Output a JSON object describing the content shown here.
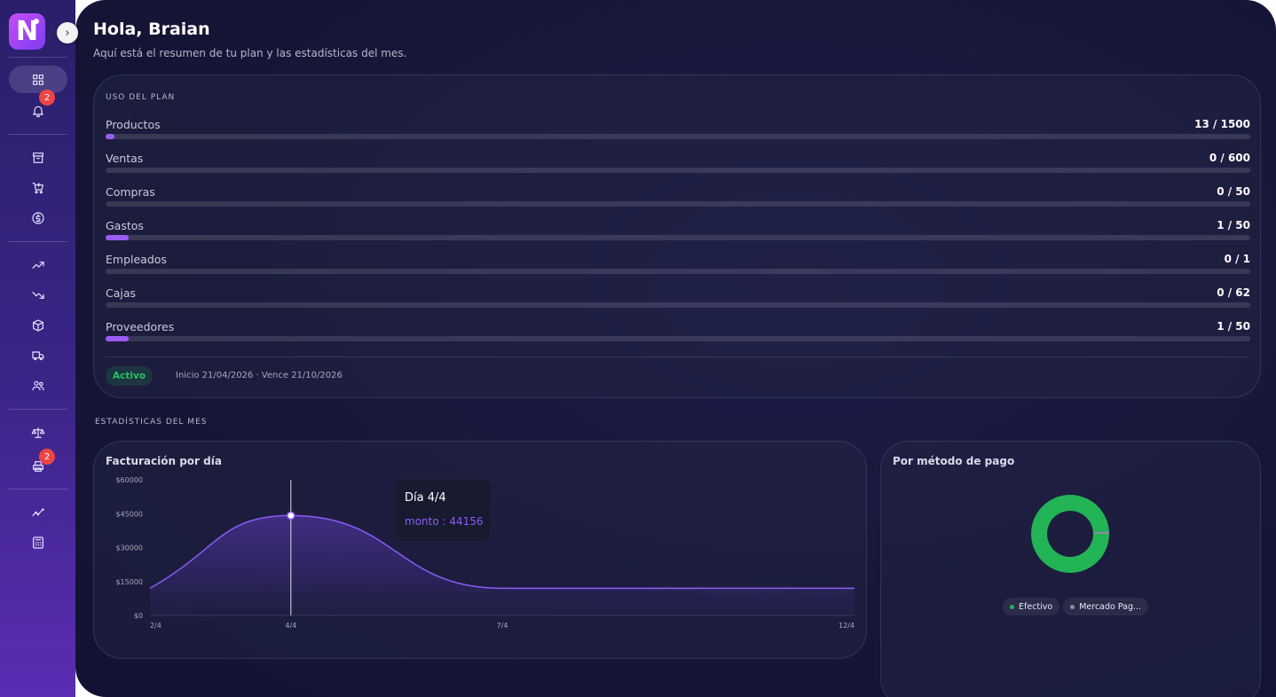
{
  "app": {
    "logo_letter": "N"
  },
  "sidebar": {
    "items": [
      {
        "icon": "dashboard-icon",
        "active": true
      },
      {
        "icon": "bell-icon",
        "badge": "2"
      },
      {
        "icon": "archive-icon"
      },
      {
        "icon": "cart-icon"
      },
      {
        "icon": "dollar-icon"
      },
      {
        "icon": "trending-up-icon"
      },
      {
        "icon": "trending-down-icon"
      },
      {
        "icon": "box-icon"
      },
      {
        "icon": "truck-icon"
      },
      {
        "icon": "users-icon"
      },
      {
        "icon": "scale-icon"
      },
      {
        "icon": "printer-icon",
        "badge": "2"
      },
      {
        "icon": "analytics-icon"
      },
      {
        "icon": "calculator-icon"
      }
    ]
  },
  "header": {
    "title": "Hola, Braian",
    "subtitle": "Aquí está el resumen de tu plan y las estadísticas del mes."
  },
  "plan": {
    "title": "USO DEL PLAN",
    "usage": [
      {
        "label": "Productos",
        "value": "13 / 1500",
        "fill": 0.008
      },
      {
        "label": "Ventas",
        "value": "0 / 600",
        "fill": 0
      },
      {
        "label": "Compras",
        "value": "0 / 50",
        "fill": 0
      },
      {
        "label": "Gastos",
        "value": "1 / 50",
        "fill": 0.02
      },
      {
        "label": "Empleados",
        "value": "0 / 1",
        "fill": 0
      },
      {
        "label": "Cajas",
        "value": "0 / 62",
        "fill": 0
      },
      {
        "label": "Proveedores",
        "value": "1 / 50",
        "fill": 0.02
      }
    ],
    "status": "Activo",
    "dates": "Inicio 21/04/2026 · Vence 21/10/2026"
  },
  "stats": {
    "title": "ESTADÍSTICAS DEL MES"
  },
  "chart_data": [
    {
      "type": "area",
      "title": "Facturación por día",
      "x_ticks": [
        "2/4",
        "4/4",
        "7/4",
        "12/4"
      ],
      "y_ticks": [
        "$0",
        "$15000",
        "$30000",
        "$45000",
        "$60000"
      ],
      "ylim": [
        0,
        60000
      ],
      "x": [
        2,
        4,
        7,
        12
      ],
      "values": [
        12000,
        44156,
        12000,
        12000
      ],
      "series": [
        {
          "name": "monto",
          "values": [
            12000,
            44156,
            12000,
            12000
          ]
        }
      ],
      "tooltip": {
        "title": "Día 4/4",
        "text": "monto : 44156"
      },
      "colors": {
        "line": "#8b5cf6"
      }
    },
    {
      "type": "pie",
      "title": "Por método de pago",
      "labels": [
        "Efectivo",
        "Mercado Pag..."
      ],
      "values": [
        99,
        1
      ],
      "colors": [
        "#22b455",
        "#8a8fa3"
      ]
    }
  ]
}
